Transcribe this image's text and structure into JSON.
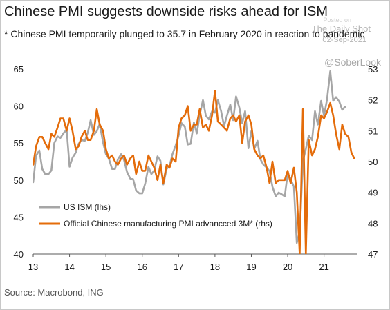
{
  "title": "Chinese PMI suggests downside risks ahead for ISM",
  "subtitle": "* Chinese PMI temporarily plunged to 35.7 in February 2020 in reaction to pandemic",
  "watermark": {
    "source": "Posted on",
    "brand": "The Daily Shot",
    "date": "02-Sep-2021",
    "handle": "@SoberLook"
  },
  "source_note": "Source: Macrobond, ING",
  "colors": {
    "ism": "#a6a6a6",
    "pmi": "#e46c0a",
    "text": "#1a1a1a",
    "axis": "#595959"
  },
  "chart_data": {
    "type": "line",
    "title": "",
    "xlabel": "",
    "ylabel": "",
    "grid": false,
    "legend_position": "bottom-left",
    "xlim": [
      2013.0,
      2021.92
    ],
    "x_ticks": [
      2013,
      2014,
      2015,
      2016,
      2017,
      2018,
      2019,
      2020,
      2021
    ],
    "x_tick_labels": [
      "13",
      "14",
      "15",
      "16",
      "17",
      "18",
      "19",
      "20",
      "21"
    ],
    "y_left": {
      "label": "lhs",
      "lim": [
        40,
        65
      ],
      "ticks": [
        40,
        45,
        50,
        55,
        60,
        65
      ]
    },
    "y_right": {
      "label": "rhs",
      "lim": [
        47,
        53
      ],
      "ticks": [
        47,
        48,
        49,
        50,
        51,
        52,
        53
      ]
    },
    "series": [
      {
        "name": "US ISM (lhs)",
        "axis": "left",
        "color": "#a6a6a6",
        "points": [
          [
            2013.0,
            49.7
          ],
          [
            2013.08,
            53.3
          ],
          [
            2013.17,
            54.0
          ],
          [
            2013.25,
            51.5
          ],
          [
            2013.33,
            50.8
          ],
          [
            2013.42,
            50.8
          ],
          [
            2013.5,
            51.3
          ],
          [
            2013.58,
            55.0
          ],
          [
            2013.67,
            55.9
          ],
          [
            2013.75,
            55.7
          ],
          [
            2013.83,
            56.3
          ],
          [
            2013.92,
            56.8
          ],
          [
            2014.0,
            51.8
          ],
          [
            2014.08,
            53.0
          ],
          [
            2014.17,
            53.7
          ],
          [
            2014.25,
            54.9
          ],
          [
            2014.33,
            55.4
          ],
          [
            2014.42,
            55.3
          ],
          [
            2014.5,
            56.4
          ],
          [
            2014.58,
            58.1
          ],
          [
            2014.67,
            56.1
          ],
          [
            2014.75,
            56.6
          ],
          [
            2014.83,
            57.6
          ],
          [
            2014.92,
            55.1
          ],
          [
            2015.0,
            53.5
          ],
          [
            2015.08,
            52.9
          ],
          [
            2015.17,
            51.5
          ],
          [
            2015.25,
            51.5
          ],
          [
            2015.33,
            52.8
          ],
          [
            2015.42,
            53.5
          ],
          [
            2015.5,
            52.7
          ],
          [
            2015.58,
            51.1
          ],
          [
            2015.67,
            50.2
          ],
          [
            2015.75,
            50.1
          ],
          [
            2015.83,
            48.6
          ],
          [
            2015.92,
            48.2
          ],
          [
            2016.0,
            48.2
          ],
          [
            2016.08,
            49.5
          ],
          [
            2016.17,
            51.8
          ],
          [
            2016.25,
            50.8
          ],
          [
            2016.33,
            51.3
          ],
          [
            2016.42,
            53.2
          ],
          [
            2016.5,
            52.6
          ],
          [
            2016.58,
            49.4
          ],
          [
            2016.67,
            51.5
          ],
          [
            2016.75,
            51.9
          ],
          [
            2016.83,
            53.5
          ],
          [
            2016.92,
            54.7
          ],
          [
            2017.0,
            56.0
          ],
          [
            2017.08,
            57.7
          ],
          [
            2017.17,
            57.2
          ],
          [
            2017.25,
            54.8
          ],
          [
            2017.33,
            54.9
          ],
          [
            2017.42,
            57.8
          ],
          [
            2017.5,
            56.3
          ],
          [
            2017.58,
            58.8
          ],
          [
            2017.67,
            60.8
          ],
          [
            2017.75,
            58.7
          ],
          [
            2017.83,
            58.2
          ],
          [
            2017.92,
            59.3
          ],
          [
            2018.0,
            59.1
          ],
          [
            2018.08,
            60.8
          ],
          [
            2018.17,
            59.3
          ],
          [
            2018.25,
            57.3
          ],
          [
            2018.33,
            58.7
          ],
          [
            2018.42,
            60.2
          ],
          [
            2018.5,
            58.1
          ],
          [
            2018.58,
            61.3
          ],
          [
            2018.67,
            59.8
          ],
          [
            2018.75,
            57.7
          ],
          [
            2018.83,
            59.3
          ],
          [
            2018.92,
            54.3
          ],
          [
            2019.0,
            56.6
          ],
          [
            2019.08,
            54.2
          ],
          [
            2019.17,
            55.3
          ],
          [
            2019.25,
            52.8
          ],
          [
            2019.33,
            52.1
          ],
          [
            2019.42,
            51.7
          ],
          [
            2019.5,
            51.2
          ],
          [
            2019.58,
            49.1
          ],
          [
            2019.67,
            47.8
          ],
          [
            2019.75,
            48.3
          ],
          [
            2019.83,
            48.1
          ],
          [
            2019.92,
            47.8
          ],
          [
            2020.0,
            50.9
          ],
          [
            2020.08,
            50.1
          ],
          [
            2020.17,
            49.1
          ],
          [
            2020.25,
            41.5
          ],
          [
            2020.33,
            43.1
          ],
          [
            2020.42,
            52.6
          ],
          [
            2020.5,
            54.2
          ],
          [
            2020.58,
            56.0
          ],
          [
            2020.67,
            55.4
          ],
          [
            2020.75,
            59.3
          ],
          [
            2020.83,
            57.5
          ],
          [
            2020.92,
            60.7
          ],
          [
            2021.0,
            58.7
          ],
          [
            2021.08,
            60.8
          ],
          [
            2021.17,
            64.7
          ],
          [
            2021.25,
            60.7
          ],
          [
            2021.33,
            61.2
          ],
          [
            2021.42,
            60.6
          ],
          [
            2021.5,
            59.5
          ],
          [
            2021.58,
            59.9
          ]
        ]
      },
      {
        "name": "Official Chinese manufacturing PMI advancced 3M* (rhs)",
        "axis": "right",
        "color": "#e46c0a",
        "points": [
          [
            2013.0,
            49.9
          ],
          [
            2013.08,
            50.5
          ],
          [
            2013.17,
            50.8
          ],
          [
            2013.25,
            50.8
          ],
          [
            2013.33,
            50.6
          ],
          [
            2013.42,
            50.4
          ],
          [
            2013.5,
            50.9
          ],
          [
            2013.58,
            50.8
          ],
          [
            2013.67,
            51.1
          ],
          [
            2013.75,
            51.4
          ],
          [
            2013.83,
            51.4
          ],
          [
            2013.92,
            51.0
          ],
          [
            2014.0,
            51.4
          ],
          [
            2014.08,
            51.0
          ],
          [
            2014.17,
            50.4
          ],
          [
            2014.25,
            50.5
          ],
          [
            2014.33,
            50.8
          ],
          [
            2014.42,
            51.0
          ],
          [
            2014.5,
            50.7
          ],
          [
            2014.58,
            50.7
          ],
          [
            2014.67,
            51.0
          ],
          [
            2014.75,
            51.7
          ],
          [
            2014.83,
            51.2
          ],
          [
            2014.92,
            51.0
          ],
          [
            2015.0,
            50.4
          ],
          [
            2015.08,
            50.1
          ],
          [
            2015.17,
            50.2
          ],
          [
            2015.25,
            50.0
          ],
          [
            2015.33,
            49.9
          ],
          [
            2015.42,
            50.1
          ],
          [
            2015.5,
            50.2
          ],
          [
            2015.58,
            49.9
          ],
          [
            2015.67,
            50.1
          ],
          [
            2015.75,
            50.2
          ],
          [
            2015.83,
            49.6
          ],
          [
            2015.92,
            50.0
          ],
          [
            2016.0,
            49.7
          ],
          [
            2016.08,
            49.7
          ],
          [
            2016.17,
            50.2
          ],
          [
            2016.25,
            50.0
          ],
          [
            2016.33,
            49.8
          ],
          [
            2016.42,
            49.4
          ],
          [
            2016.5,
            49.9
          ],
          [
            2016.58,
            49.3
          ],
          [
            2016.67,
            49.9
          ],
          [
            2016.75,
            49.8
          ],
          [
            2016.83,
            50.1
          ],
          [
            2016.92,
            50.0
          ],
          [
            2017.0,
            51.1
          ],
          [
            2017.08,
            51.4
          ],
          [
            2017.17,
            51.5
          ],
          [
            2017.25,
            51.8
          ],
          [
            2017.33,
            51.0
          ],
          [
            2017.42,
            51.2
          ],
          [
            2017.5,
            51.2
          ],
          [
            2017.58,
            51.7
          ],
          [
            2017.67,
            51.1
          ],
          [
            2017.75,
            51.2
          ],
          [
            2017.83,
            51.0
          ],
          [
            2017.92,
            51.5
          ],
          [
            2018.0,
            52.3
          ],
          [
            2018.08,
            51.3
          ],
          [
            2018.17,
            51.2
          ],
          [
            2018.25,
            51.1
          ],
          [
            2018.33,
            51.0
          ],
          [
            2018.42,
            51.4
          ],
          [
            2018.5,
            51.5
          ],
          [
            2018.58,
            51.3
          ],
          [
            2018.67,
            51.5
          ],
          [
            2018.75,
            50.6
          ],
          [
            2018.83,
            51.3
          ],
          [
            2018.92,
            51.5
          ],
          [
            2019.0,
            51.2
          ],
          [
            2019.08,
            50.4
          ],
          [
            2019.17,
            50.2
          ],
          [
            2019.25,
            50.1
          ],
          [
            2019.33,
            50.2
          ],
          [
            2019.42,
            49.8
          ],
          [
            2019.5,
            49.3
          ],
          [
            2019.58,
            50.0
          ],
          [
            2019.67,
            49.3
          ],
          [
            2019.75,
            49.4
          ],
          [
            2019.83,
            49.4
          ],
          [
            2019.92,
            49.4
          ],
          [
            2020.0,
            49.7
          ],
          [
            2020.08,
            49.3
          ],
          [
            2020.17,
            49.8
          ],
          [
            2020.25,
            49.0
          ],
          [
            2020.33,
            47.0
          ],
          [
            2020.42,
            51.7
          ],
          [
            2020.5,
            47.0
          ],
          [
            2020.58,
            50.7
          ],
          [
            2020.67,
            50.2
          ],
          [
            2020.75,
            50.4
          ],
          [
            2020.83,
            50.8
          ],
          [
            2020.92,
            51.5
          ],
          [
            2021.0,
            51.4
          ],
          [
            2021.08,
            51.6
          ],
          [
            2021.17,
            51.9
          ],
          [
            2021.25,
            51.5
          ],
          [
            2021.33,
            50.9
          ],
          [
            2021.42,
            50.4
          ],
          [
            2021.5,
            51.2
          ],
          [
            2021.58,
            50.9
          ],
          [
            2021.67,
            50.8
          ],
          [
            2021.75,
            50.3
          ],
          [
            2021.83,
            50.1
          ]
        ]
      }
    ]
  }
}
